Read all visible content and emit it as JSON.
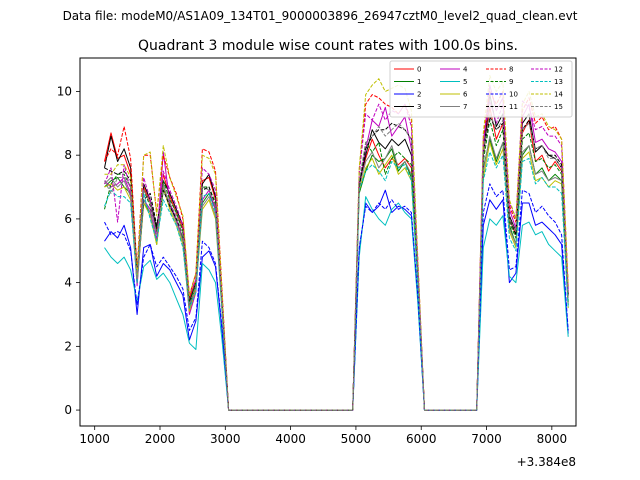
{
  "suptitle": "Data file: modeM0/AS1A09_134T01_9000003896_26947cztM0_level2_quad_clean.evt",
  "chart_data": {
    "type": "line",
    "title": "Quadrant 3 module wise count rates with 100.0s bins.",
    "xlabel": "",
    "ylabel": "",
    "x_offset_label": "+3.384e8",
    "xlim": [
      775,
      8370
    ],
    "ylim": [
      -0.5,
      11.05
    ],
    "xticks": [
      1000,
      2000,
      3000,
      4000,
      5000,
      6000,
      7000,
      8000
    ],
    "yticks": [
      0,
      2,
      4,
      6,
      8,
      10
    ],
    "legend_position": "top-right",
    "x": [
      1150,
      1250,
      1350,
      1450,
      1550,
      1650,
      1750,
      1850,
      1950,
      2050,
      2150,
      2250,
      2350,
      2450,
      2550,
      2650,
      2750,
      2850,
      2950,
      3050,
      3150,
      3250,
      3350,
      3450,
      3550,
      3650,
      3750,
      3850,
      3950,
      4050,
      4150,
      4250,
      4350,
      4450,
      4550,
      4650,
      4750,
      4850,
      4950,
      5050,
      5150,
      5250,
      5350,
      5450,
      5550,
      5650,
      5750,
      5850,
      5950,
      6050,
      6150,
      6250,
      6350,
      6450,
      6550,
      6650,
      6750,
      6850,
      6950,
      7050,
      7150,
      7250,
      7350,
      7450,
      7550,
      7650,
      7750,
      7850,
      7950,
      8050,
      8150,
      8250
    ],
    "series": [
      {
        "name": "0",
        "color": "#ff0000",
        "dashed": false,
        "values": [
          7.8,
          8.7,
          7.9,
          8.0,
          7.4,
          4.2,
          7.0,
          6.5,
          5.6,
          7.4,
          6.7,
          6.2,
          5.7,
          3.5,
          4.1,
          7.2,
          7.3,
          6.6,
          3.5,
          0,
          0,
          0,
          0,
          0,
          0,
          0,
          0,
          0,
          0,
          0,
          0,
          0,
          0,
          0,
          0,
          0,
          0,
          0,
          0,
          7.2,
          7.9,
          8.5,
          8.0,
          7.6,
          7.9,
          7.7,
          7.9,
          7.6,
          4.2,
          0,
          0,
          0,
          0,
          0,
          0,
          0,
          0,
          0,
          8.0,
          9.5,
          8.5,
          9.0,
          6.0,
          5.5,
          8.7,
          9.1,
          7.8,
          8.0,
          7.5,
          7.8,
          7.5,
          3.6
        ]
      },
      {
        "name": "1",
        "color": "#008000",
        "dashed": false,
        "values": [
          7.0,
          7.2,
          7.3,
          7.0,
          6.8,
          4.0,
          6.5,
          6.2,
          5.2,
          6.9,
          6.5,
          5.9,
          5.4,
          3.1,
          3.8,
          6.5,
          6.8,
          6.3,
          3.2,
          0,
          0,
          0,
          0,
          0,
          0,
          0,
          0,
          0,
          0,
          0,
          0,
          0,
          0,
          0,
          0,
          0,
          0,
          0,
          0,
          6.8,
          7.5,
          8.0,
          7.8,
          7.9,
          8.2,
          7.5,
          7.8,
          7.3,
          4.0,
          0,
          0,
          0,
          0,
          0,
          0,
          0,
          0,
          0,
          7.6,
          8.5,
          7.8,
          8.4,
          5.8,
          5.2,
          8.0,
          8.3,
          7.4,
          7.6,
          7.2,
          7.4,
          7.2,
          3.3
        ]
      },
      {
        "name": "2",
        "color": "#0000ff",
        "dashed": false,
        "values": [
          5.3,
          5.6,
          5.4,
          5.8,
          5.1,
          3.0,
          5.1,
          5.2,
          4.2,
          4.6,
          4.4,
          4.0,
          3.6,
          2.2,
          2.8,
          4.8,
          5.0,
          4.5,
          2.5,
          0,
          0,
          0,
          0,
          0,
          0,
          0,
          0,
          0,
          0,
          0,
          0,
          0,
          0,
          0,
          0,
          0,
          0,
          0,
          0,
          5.0,
          6.5,
          6.2,
          6.4,
          6.9,
          6.2,
          6.4,
          6.3,
          6.1,
          3.4,
          0,
          0,
          0,
          0,
          0,
          0,
          0,
          0,
          0,
          5.8,
          6.6,
          6.3,
          6.6,
          4.0,
          4.3,
          6.5,
          6.5,
          5.8,
          5.9,
          5.7,
          5.5,
          5.2,
          2.4
        ]
      },
      {
        "name": "3",
        "color": "#000000",
        "dashed": false,
        "values": [
          7.6,
          8.6,
          7.8,
          8.2,
          7.6,
          4.3,
          7.1,
          6.6,
          5.7,
          7.2,
          6.8,
          6.3,
          5.8,
          3.4,
          4.0,
          7.1,
          7.4,
          6.7,
          3.5,
          0,
          0,
          0,
          0,
          0,
          0,
          0,
          0,
          0,
          0,
          0,
          0,
          0,
          0,
          0,
          0,
          0,
          0,
          0,
          0,
          7.1,
          8.0,
          8.8,
          8.4,
          8.2,
          8.5,
          8.3,
          8.5,
          8.0,
          4.2,
          0,
          0,
          0,
          0,
          0,
          0,
          0,
          0,
          0,
          8.0,
          9.9,
          8.9,
          9.3,
          6.1,
          5.6,
          9.0,
          9.3,
          8.1,
          8.3,
          8.0,
          7.9,
          7.6,
          3.6
        ]
      },
      {
        "name": "4",
        "color": "#bf00bf",
        "dashed": false,
        "values": [
          7.2,
          7.0,
          7.1,
          7.3,
          6.8,
          3.9,
          6.6,
          6.3,
          5.3,
          8.1,
          6.5,
          6.0,
          5.3,
          3.0,
          3.7,
          6.6,
          6.9,
          6.3,
          3.2,
          0,
          0,
          0,
          0,
          0,
          0,
          0,
          0,
          0,
          0,
          0,
          0,
          0,
          0,
          0,
          0,
          0,
          0,
          0,
          0,
          7.0,
          8.2,
          9.1,
          8.9,
          9.5,
          8.6,
          8.9,
          9.2,
          8.2,
          4.1,
          0,
          0,
          0,
          0,
          0,
          0,
          0,
          0,
          0,
          8.3,
          10.2,
          9.4,
          9.8,
          6.3,
          5.7,
          9.2,
          9.6,
          8.4,
          8.5,
          8.2,
          8.1,
          7.8,
          3.7
        ]
      },
      {
        "name": "5",
        "color": "#00bfbf",
        "dashed": false,
        "values": [
          5.1,
          4.8,
          4.6,
          4.8,
          4.4,
          3.4,
          4.5,
          4.7,
          4.1,
          4.3,
          4.0,
          3.5,
          3.0,
          2.1,
          1.9,
          4.6,
          4.4,
          4.0,
          2.2,
          0,
          0,
          0,
          0,
          0,
          0,
          0,
          0,
          0,
          0,
          0,
          0,
          0,
          0,
          0,
          0,
          0,
          0,
          0,
          0,
          4.8,
          6.7,
          6.3,
          6.0,
          5.8,
          6.3,
          6.5,
          6.2,
          6.0,
          3.3,
          0,
          0,
          0,
          0,
          0,
          0,
          0,
          0,
          0,
          5.1,
          6.0,
          5.8,
          6.1,
          4.2,
          4.0,
          5.8,
          5.9,
          5.5,
          5.6,
          5.2,
          5.0,
          4.8,
          2.3
        ]
      },
      {
        "name": "6",
        "color": "#bfbf00",
        "dashed": false,
        "values": [
          7.0,
          7.1,
          6.9,
          7.0,
          6.6,
          4.0,
          6.5,
          6.1,
          5.2,
          7.0,
          6.3,
          5.8,
          5.2,
          3.1,
          3.8,
          6.3,
          6.6,
          6.0,
          3.1,
          0,
          0,
          0,
          0,
          0,
          0,
          0,
          0,
          0,
          0,
          0,
          0,
          0,
          0,
          0,
          0,
          0,
          0,
          0,
          0,
          6.9,
          7.6,
          7.9,
          7.4,
          7.7,
          8.0,
          7.4,
          7.6,
          7.2,
          3.9,
          0,
          0,
          0,
          0,
          0,
          0,
          0,
          0,
          0,
          7.3,
          8.4,
          7.7,
          8.2,
          5.6,
          5.1,
          7.9,
          8.1,
          7.2,
          7.3,
          7.0,
          7.2,
          7.1,
          3.2
        ]
      },
      {
        "name": "7",
        "color": "#808080",
        "dashed": false,
        "values": [
          7.1,
          7.3,
          7.0,
          7.2,
          6.7,
          4.1,
          6.6,
          6.2,
          5.3,
          7.1,
          6.4,
          5.9,
          5.3,
          3.2,
          3.9,
          6.4,
          6.7,
          6.1,
          3.2,
          0,
          0,
          0,
          0,
          0,
          0,
          0,
          0,
          0,
          0,
          0,
          0,
          0,
          0,
          0,
          0,
          0,
          0,
          0,
          0,
          7.0,
          7.8,
          8.1,
          7.6,
          7.9,
          8.3,
          7.6,
          7.8,
          7.4,
          4.0,
          0,
          0,
          0,
          0,
          0,
          0,
          0,
          0,
          0,
          7.5,
          8.6,
          7.9,
          8.4,
          5.7,
          5.2,
          8.1,
          8.3,
          7.4,
          7.5,
          7.2,
          7.3,
          7.2,
          3.3
        ]
      },
      {
        "name": "8",
        "color": "#ff0000",
        "dashed": true,
        "values": [
          7.8,
          8.2,
          8.0,
          8.9,
          7.9,
          4.4,
          8.0,
          8.0,
          6.2,
          8.0,
          7.3,
          6.8,
          6.0,
          3.6,
          4.3,
          8.2,
          8.1,
          7.5,
          3.8,
          0,
          0,
          0,
          0,
          0,
          0,
          0,
          0,
          0,
          0,
          0,
          0,
          0,
          0,
          0,
          0,
          0,
          0,
          0,
          0,
          7.5,
          9.6,
          9.9,
          9.8,
          9.6,
          9.5,
          9.3,
          9.6,
          9.1,
          4.6,
          0,
          0,
          0,
          0,
          0,
          0,
          0,
          0,
          0,
          8.5,
          10.0,
          9.6,
          10.0,
          6.4,
          5.9,
          9.4,
          9.8,
          9.0,
          9.2,
          8.8,
          8.9,
          8.5,
          3.9
        ]
      },
      {
        "name": "9",
        "color": "#008000",
        "dashed": true,
        "values": [
          6.3,
          7.1,
          7.4,
          7.4,
          7.0,
          4.2,
          6.9,
          6.4,
          5.6,
          7.2,
          6.6,
          6.2,
          5.6,
          3.3,
          4.0,
          7.0,
          7.0,
          6.5,
          3.3,
          0,
          0,
          0,
          0,
          0,
          0,
          0,
          0,
          0,
          0,
          0,
          0,
          0,
          0,
          0,
          0,
          0,
          0,
          0,
          0,
          7.1,
          8.4,
          8.1,
          8.4,
          7.4,
          7.9,
          8.1,
          7.9,
          7.7,
          4.1,
          0,
          0,
          0,
          0,
          0,
          0,
          0,
          0,
          0,
          7.8,
          9.1,
          8.3,
          8.8,
          5.9,
          5.4,
          8.5,
          8.7,
          7.8,
          7.9,
          7.6,
          7.7,
          7.4,
          3.4
        ]
      },
      {
        "name": "10",
        "color": "#0000ff",
        "dashed": true,
        "values": [
          5.9,
          5.5,
          5.6,
          5.5,
          5.0,
          3.3,
          4.8,
          5.2,
          4.5,
          4.8,
          4.5,
          4.2,
          3.8,
          2.5,
          2.9,
          5.3,
          5.1,
          4.6,
          2.6,
          0,
          0,
          0,
          0,
          0,
          0,
          0,
          0,
          0,
          0,
          0,
          0,
          0,
          0,
          0,
          0,
          0,
          0,
          0,
          0,
          5.1,
          6.4,
          6.2,
          6.5,
          6.3,
          6.6,
          6.3,
          6.4,
          6.2,
          3.5,
          0,
          0,
          0,
          0,
          0,
          0,
          0,
          0,
          0,
          6.2,
          7.1,
          6.7,
          6.9,
          4.4,
          4.5,
          6.9,
          6.8,
          6.2,
          6.4,
          6.1,
          5.9,
          5.5,
          2.5
        ]
      },
      {
        "name": "11",
        "color": "#000000",
        "dashed": true,
        "values": [
          7.6,
          7.5,
          7.4,
          7.5,
          7.2,
          4.3,
          6.6,
          6.8,
          5.8,
          6.9,
          6.4,
          6.0,
          5.5,
          3.3,
          3.9,
          6.9,
          7.0,
          6.4,
          3.4,
          0,
          0,
          0,
          0,
          0,
          0,
          0,
          0,
          0,
          0,
          0,
          0,
          0,
          0,
          0,
          0,
          0,
          0,
          0,
          0,
          7.0,
          8.2,
          8.6,
          8.8,
          8.8,
          9.0,
          8.9,
          8.8,
          8.5,
          4.3,
          0,
          0,
          0,
          0,
          0,
          0,
          0,
          0,
          0,
          8.1,
          9.2,
          8.8,
          9.0,
          6.0,
          5.5,
          8.8,
          9.1,
          8.2,
          8.3,
          8.0,
          8.0,
          7.7,
          3.6
        ]
      },
      {
        "name": "12",
        "color": "#bf00bf",
        "dashed": true,
        "values": [
          7.1,
          7.6,
          5.9,
          7.7,
          6.9,
          4.0,
          7.3,
          6.6,
          5.4,
          7.5,
          6.9,
          6.4,
          5.8,
          3.6,
          4.1,
          7.6,
          7.4,
          6.9,
          3.4,
          0,
          0,
          0,
          0,
          0,
          0,
          0,
          0,
          0,
          0,
          0,
          0,
          0,
          0,
          0,
          0,
          0,
          0,
          0,
          0,
          7.4,
          9.3,
          9.1,
          9.6,
          9.1,
          9.4,
          9.3,
          9.6,
          8.9,
          4.4,
          0,
          0,
          0,
          0,
          0,
          0,
          0,
          0,
          0,
          8.5,
          9.7,
          9.0,
          9.6,
          6.5,
          6.0,
          9.7,
          9.5,
          8.8,
          8.9,
          8.6,
          8.6,
          8.3,
          3.8
        ]
      },
      {
        "name": "13",
        "color": "#00bfbf",
        "dashed": true,
        "values": [
          6.4,
          6.9,
          6.7,
          6.7,
          6.5,
          4.0,
          6.8,
          6.0,
          5.3,
          6.6,
          6.2,
          5.8,
          5.1,
          3.2,
          3.7,
          6.7,
          6.8,
          6.2,
          3.1,
          0,
          0,
          0,
          0,
          0,
          0,
          0,
          0,
          0,
          0,
          0,
          0,
          0,
          0,
          0,
          0,
          0,
          0,
          0,
          0,
          6.9,
          7.5,
          7.7,
          7.5,
          7.2,
          7.8,
          7.6,
          7.7,
          7.2,
          3.9,
          0,
          0,
          0,
          0,
          0,
          0,
          0,
          0,
          0,
          7.2,
          8.1,
          7.6,
          8.0,
          5.4,
          5.0,
          7.8,
          7.9,
          7.1,
          7.3,
          7.0,
          7.0,
          6.8,
          3.2
        ]
      },
      {
        "name": "14",
        "color": "#bfbf00",
        "dashed": true,
        "values": [
          7.4,
          7.4,
          7.7,
          7.7,
          7.3,
          4.2,
          8.0,
          8.1,
          6.1,
          8.3,
          7.3,
          6.7,
          6.1,
          3.6,
          4.3,
          8.0,
          7.9,
          7.4,
          3.7,
          0,
          0,
          0,
          0,
          0,
          0,
          0,
          0,
          0,
          0,
          0,
          0,
          0,
          0,
          0,
          0,
          0,
          0,
          0,
          0,
          7.6,
          9.9,
          10.2,
          10.4,
          10.0,
          10.1,
          10.2,
          10.1,
          9.4,
          4.6,
          0,
          0,
          0,
          0,
          0,
          0,
          0,
          0,
          0,
          8.7,
          10.5,
          10.0,
          10.3,
          6.6,
          6.0,
          9.6,
          10.0,
          9.2,
          9.3,
          8.9,
          8.8,
          8.5,
          3.9
        ]
      },
      {
        "name": "15",
        "color": "#808080",
        "dashed": true,
        "values": [
          7.2,
          6.8,
          7.3,
          7.3,
          7.0,
          4.1,
          6.9,
          6.5,
          5.5,
          7.0,
          6.5,
          6.1,
          5.5,
          3.3,
          3.9,
          7.0,
          6.9,
          6.4,
          3.3,
          0,
          0,
          0,
          0,
          0,
          0,
          0,
          0,
          0,
          0,
          0,
          0,
          0,
          0,
          0,
          0,
          0,
          0,
          0,
          0,
          7.2,
          8.4,
          8.6,
          8.9,
          8.6,
          8.8,
          9.0,
          8.8,
          8.5,
          4.3,
          0,
          0,
          0,
          0,
          0,
          0,
          0,
          0,
          0,
          8.1,
          9.3,
          8.8,
          9.1,
          6.0,
          5.6,
          8.8,
          9.0,
          8.2,
          8.3,
          7.9,
          7.9,
          7.6,
          3.5
        ]
      }
    ]
  }
}
